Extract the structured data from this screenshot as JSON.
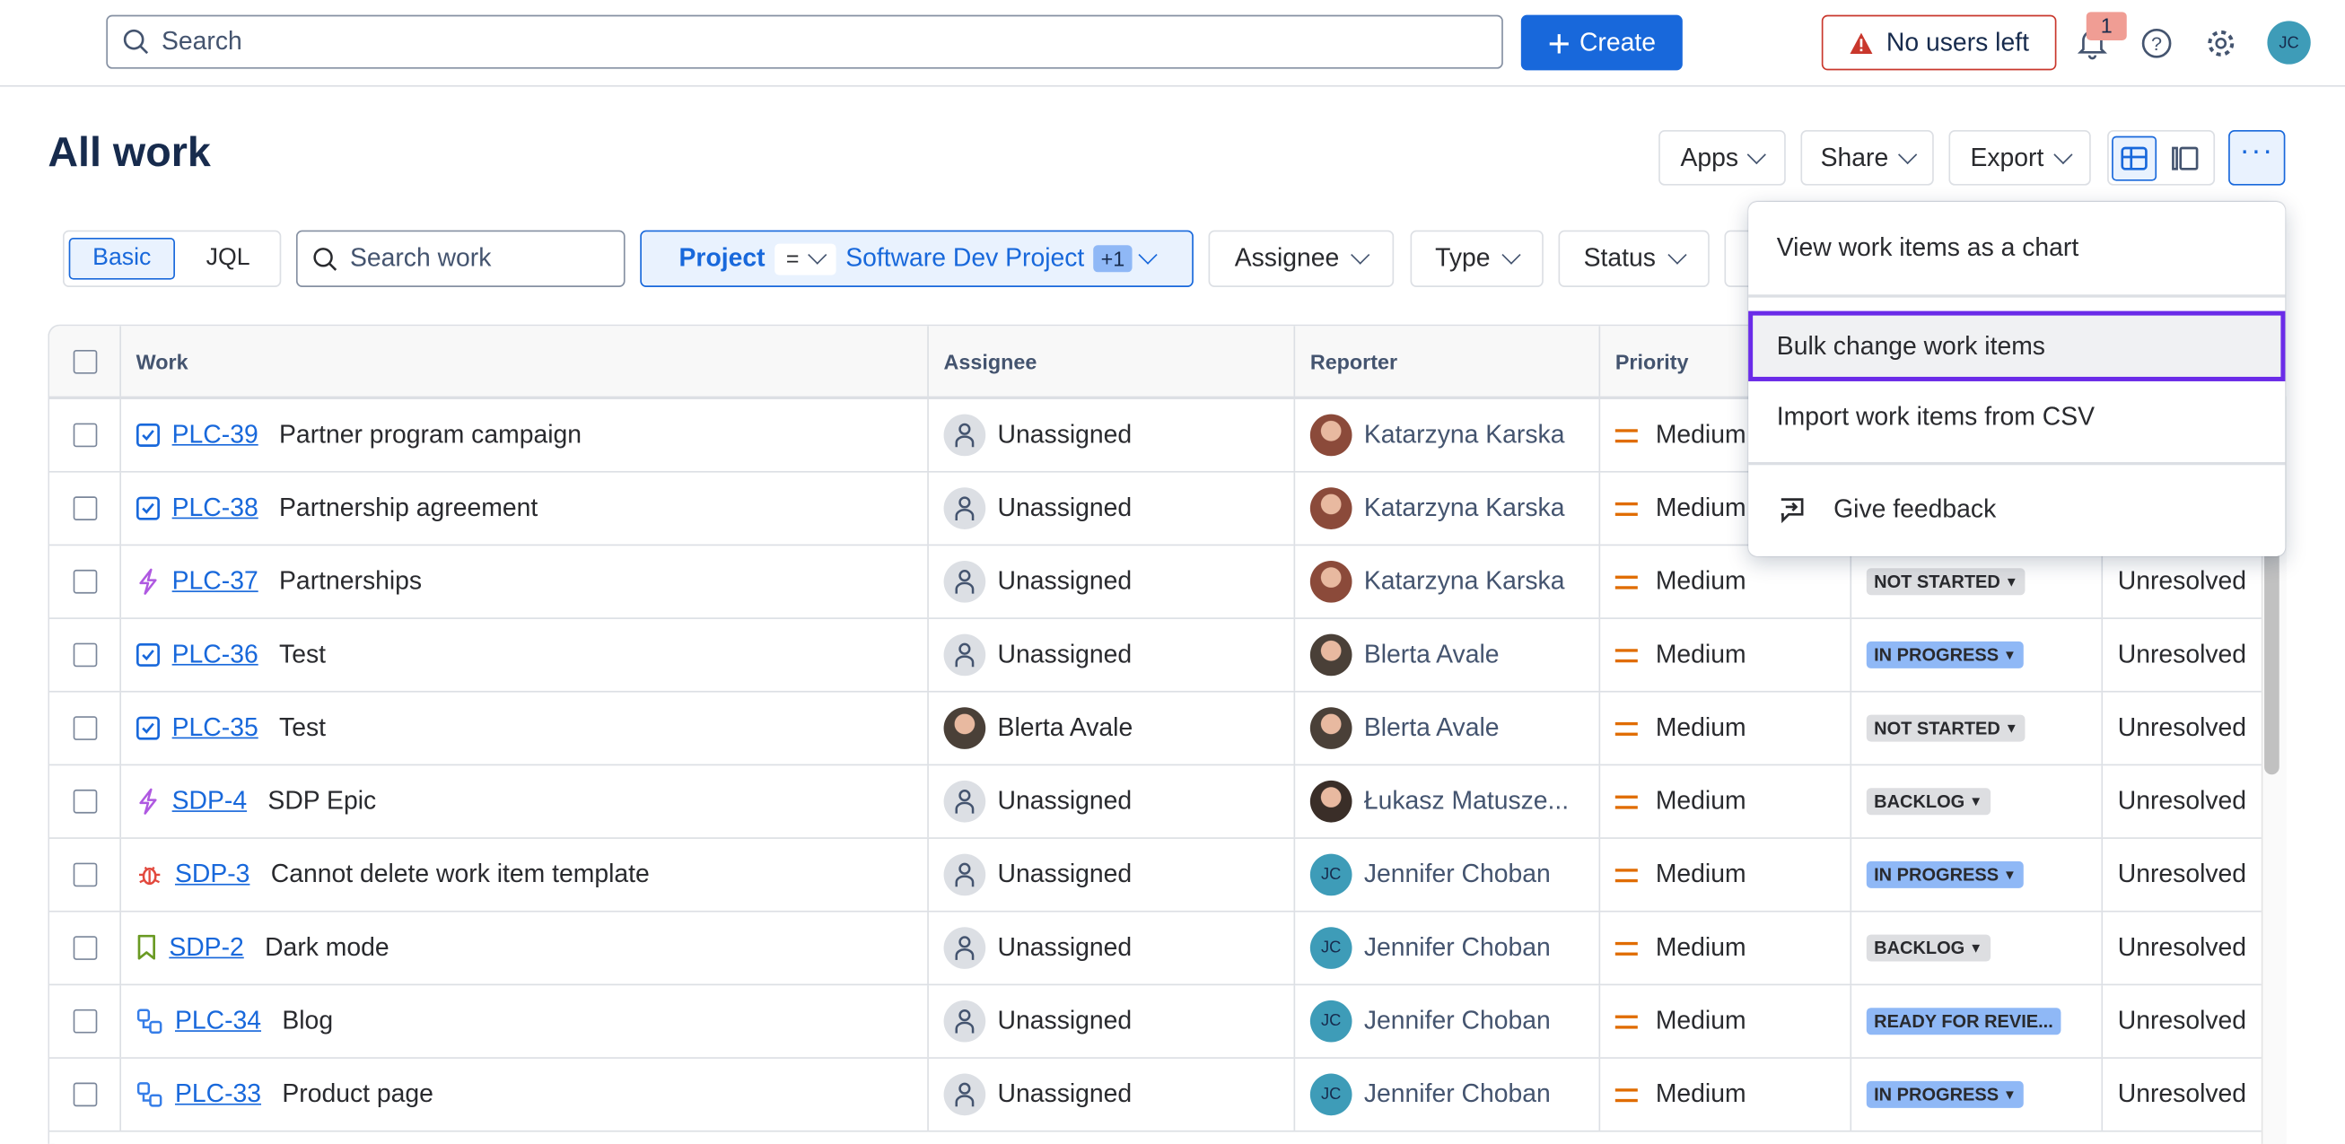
{
  "topbar": {
    "search_placeholder": "Search",
    "create_label": "Create",
    "no_users_label": "No users left",
    "notification_count": "1",
    "avatar_initials": "JC"
  },
  "page": {
    "title": "All work"
  },
  "toolbar": {
    "apps": "Apps",
    "share": "Share",
    "export": "Export",
    "view_mode": "list"
  },
  "filters": {
    "basic": "Basic",
    "jql": "JQL",
    "search_placeholder": "Search work",
    "project_label": "Project",
    "project_op": "=",
    "project_value": "Software Dev Project",
    "project_extra": "+1",
    "assignee": "Assignee",
    "type": "Type",
    "status": "Status"
  },
  "table": {
    "columns": [
      "Work",
      "Assignee",
      "Reporter",
      "Priority"
    ],
    "rows": [
      {
        "type": "task",
        "key": "PLC-39",
        "summary": "Partner program campaign",
        "assignee": "Unassigned",
        "reporter": "Katarzyna Karska",
        "priority": "Medium",
        "status": "",
        "resolution": ""
      },
      {
        "type": "task",
        "key": "PLC-38",
        "summary": "Partnership agreement",
        "assignee": "Unassigned",
        "reporter": "Katarzyna Karska",
        "priority": "Medium",
        "status": "",
        "resolution": ""
      },
      {
        "type": "epic",
        "key": "PLC-37",
        "summary": "Partnerships",
        "assignee": "Unassigned",
        "reporter": "Katarzyna Karska",
        "priority": "Medium",
        "status": "NOT STARTED",
        "resolution": "Unresolved"
      },
      {
        "type": "task",
        "key": "PLC-36",
        "summary": "Test",
        "assignee": "Unassigned",
        "reporter": "Blerta Avale",
        "priority": "Medium",
        "status": "IN PROGRESS",
        "resolution": "Unresolved"
      },
      {
        "type": "task",
        "key": "PLC-35",
        "summary": "Test",
        "assignee": "Blerta Avale",
        "reporter": "Blerta Avale",
        "priority": "Medium",
        "status": "NOT STARTED",
        "resolution": "Unresolved"
      },
      {
        "type": "epic",
        "key": "SDP-4",
        "summary": "SDP Epic",
        "assignee": "Unassigned",
        "reporter": "Łukasz Matusze...",
        "priority": "Medium",
        "status": "BACKLOG",
        "resolution": "Unresolved"
      },
      {
        "type": "bug",
        "key": "SDP-3",
        "summary": "Cannot delete work item template",
        "assignee": "Unassigned",
        "reporter": "Jennifer Choban",
        "priority": "Medium",
        "status": "IN PROGRESS",
        "resolution": "Unresolved"
      },
      {
        "type": "story",
        "key": "SDP-2",
        "summary": "Dark mode",
        "assignee": "Unassigned",
        "reporter": "Jennifer Choban",
        "priority": "Medium",
        "status": "BACKLOG",
        "resolution": "Unresolved"
      },
      {
        "type": "subtask",
        "key": "PLC-34",
        "summary": "Blog",
        "assignee": "Unassigned",
        "reporter": "Jennifer Choban",
        "priority": "Medium",
        "status": "READY FOR REVIE...",
        "resolution": "Unresolved"
      },
      {
        "type": "subtask",
        "key": "PLC-33",
        "summary": "Product page",
        "assignee": "Unassigned",
        "reporter": "Jennifer Choban",
        "priority": "Medium",
        "status": "IN PROGRESS",
        "resolution": "Unresolved"
      }
    ]
  },
  "menu": {
    "items": [
      "View work items as a chart",
      "Bulk change work items",
      "Import work items from CSV",
      "Give feedback"
    ],
    "highlighted": "Bulk change work items"
  },
  "colors": {
    "brand": "#1868DB",
    "danger": "#C9372C",
    "highlight_border": "#6A2BE8",
    "in_progress": "#8FB8F6",
    "neutral_lozenge": "#DDDEE1",
    "avatar_jc": "#3E9CB8"
  }
}
